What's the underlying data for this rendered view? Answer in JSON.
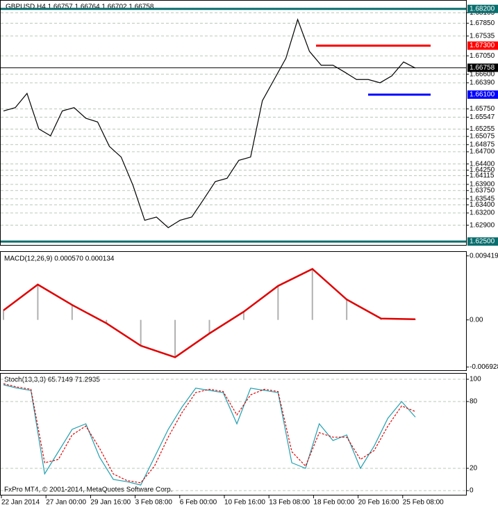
{
  "chart_data": {
    "type": "candlestick-screen",
    "title": "GBPUSD,H4  1.66757 1.66764 1.66702 1.66758",
    "copyright": "FxPro MT4, © 2001-2014, MetaQuotes Software Corp.",
    "dates": [
      "22 Jan 2014",
      "27 Jan 00:00",
      "29 Jan 16:00",
      "3 Feb 08:00",
      "6 Feb 00:00",
      "10 Feb 16:00",
      "13 Feb 08:00",
      "18 Feb 00:00",
      "20 Feb 16:00",
      "25 Feb 08:00"
    ],
    "price": {
      "ylim": [
        1.6245,
        1.6835
      ],
      "yticks": [
        {
          "value": 1.68105,
          "label": "1.68105"
        },
        {
          "value": 1.6785,
          "label": "1.67850"
        },
        {
          "value": 1.67535,
          "label": "1.67535"
        },
        {
          "value": 1.6705,
          "label": "1.67050"
        },
        {
          "value": 1.666,
          "label": "1.66600"
        },
        {
          "value": 1.6639,
          "label": "1.66390"
        },
        {
          "value": 1.6575,
          "label": "1.65750"
        },
        {
          "value": 1.65547,
          "label": "1.65547"
        },
        {
          "value": 1.65255,
          "label": "1.65255"
        },
        {
          "value": 1.65075,
          "label": "1.65075"
        },
        {
          "value": 1.64875,
          "label": "1.64875"
        },
        {
          "value": 1.647,
          "label": "1.64700"
        },
        {
          "value": 1.644,
          "label": "1.64400"
        },
        {
          "value": 1.6425,
          "label": "1.64250"
        },
        {
          "value": 1.64115,
          "label": "1.64115"
        },
        {
          "value": 1.639,
          "label": "1.63900"
        },
        {
          "value": 1.6375,
          "label": "1.63750"
        },
        {
          "value": 1.63545,
          "label": "1.63545"
        },
        {
          "value": 1.634,
          "label": "1.63400"
        },
        {
          "value": 1.632,
          "label": "1.63200"
        },
        {
          "value": 1.629,
          "label": "1.62900"
        }
      ],
      "levels": [
        {
          "value": 1.682,
          "label": "1.68200",
          "color": "#0a6e6e"
        },
        {
          "value": 1.673,
          "label": "1.67300",
          "color": "#ff0000"
        },
        {
          "value": 1.66758,
          "label": "1.66758",
          "color": "#000000"
        },
        {
          "value": 1.661,
          "label": "1.66100",
          "color": "#0000ff"
        },
        {
          "value": 1.625,
          "label": "1.62500",
          "color": "#0a6e6e"
        }
      ],
      "series": [
        {
          "name": "close",
          "color": "#000000",
          "values": [
            1.657,
            1.6578,
            1.6613,
            1.6526,
            1.6509,
            1.657,
            1.6578,
            1.6552,
            1.6543,
            1.6483,
            1.6457,
            1.6388,
            1.6302,
            1.631,
            1.6284,
            1.6302,
            1.631,
            1.6353,
            1.6397,
            1.6405,
            1.6449,
            1.6457,
            1.6595,
            1.6647,
            1.6699,
            1.6794,
            1.6716,
            1.6682,
            1.6682,
            1.6665,
            1.6647,
            1.6647,
            1.6639,
            1.6656,
            1.669,
            1.6675
          ]
        }
      ]
    },
    "macd": {
      "label": "MACD(12,26,9) 0.000570 0.000134",
      "ylim": [
        -0.0072,
        0.0098
      ],
      "yticks": [
        {
          "value": 0.009419,
          "label": "0.009419"
        },
        {
          "value": 0,
          "label": "0.00"
        },
        {
          "value": -0.006928,
          "label": "-0.006928"
        }
      ],
      "series": [
        {
          "name": "signal",
          "color": "#e00000",
          "values": [
            0.0014,
            0.0052,
            0.0022,
            -0.0005,
            -0.0038,
            -0.0055,
            -0.002,
            0.0012,
            0.005,
            0.0075,
            0.003,
            0.0002,
            0.0001
          ]
        }
      ]
    },
    "stoch": {
      "label": "Stoch(13,3,3) 65.7149 71.2935",
      "ylim": [
        0,
        100
      ],
      "yticks": [
        100,
        80,
        20,
        0
      ],
      "series": [
        {
          "name": "main",
          "color": "#20a0b0",
          "values": [
            95,
            92,
            90,
            15,
            35,
            55,
            60,
            30,
            10,
            8,
            5,
            30,
            55,
            75,
            92,
            90,
            88,
            60,
            92,
            90,
            88,
            25,
            20,
            60,
            45,
            50,
            20,
            40,
            65,
            80,
            66
          ]
        },
        {
          "name": "signal",
          "color": "#e00000",
          "values": [
            96,
            93,
            91,
            25,
            28,
            50,
            58,
            38,
            15,
            9,
            7,
            22,
            48,
            70,
            88,
            91,
            89,
            68,
            86,
            91,
            89,
            35,
            22,
            52,
            48,
            48,
            28,
            36,
            58,
            76,
            71
          ]
        }
      ]
    }
  }
}
